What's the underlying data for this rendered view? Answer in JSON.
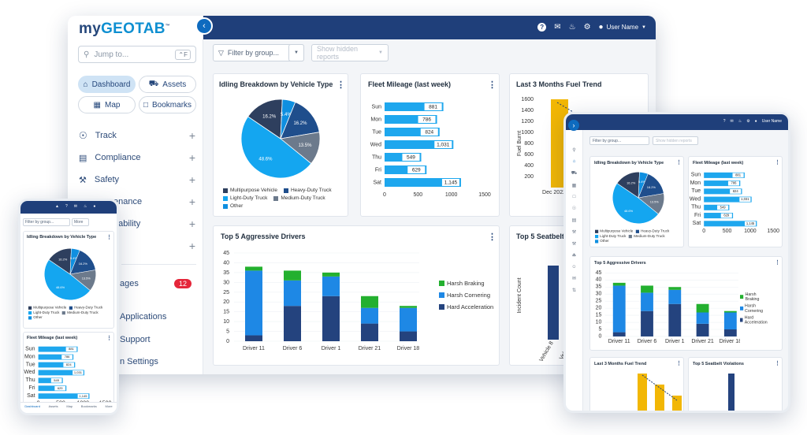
{
  "brand": {
    "prefix": "my",
    "name": "GEOTAB",
    "tm": "™"
  },
  "topbar": {
    "user": "User Name"
  },
  "sidebar": {
    "search_placeholder": "Jump to...",
    "search_shortcut": "⌃F",
    "tiles": [
      {
        "label": "Dashboard"
      },
      {
        "label": "Assets"
      },
      {
        "label": "Map"
      },
      {
        "label": "Bookmarks"
      }
    ],
    "nav": [
      {
        "label": "Track"
      },
      {
        "label": "Compliance"
      },
      {
        "label": "Safety"
      },
      {
        "label": "enance"
      },
      {
        "label": "nability"
      },
      {
        "label": "e"
      }
    ],
    "messages_label": "ages",
    "messages_count": "12",
    "apps_label": "Applications",
    "support_label": "Support",
    "settings_label": "n Settings"
  },
  "filters": {
    "group": "Filter by group...",
    "hidden": "Show hidden reports"
  },
  "idling": {
    "title": "Idling Breakdown by Vehicle Type",
    "slices": [
      {
        "name": "Multipurpose Vehicle",
        "value": 16.2,
        "color": "#2e3f5e"
      },
      {
        "name": "Heavy-Duty Truck",
        "value": 16.2,
        "color": "#1f4e8c"
      },
      {
        "name": "Light-Duty Truck",
        "value": 48.6,
        "color": "#14a6f0"
      },
      {
        "name": "Medium-Duty Truck",
        "value": 13.5,
        "color": "#6c7a8c"
      },
      {
        "name": "Other",
        "value": 5.4,
        "color": "#0f8fe0"
      }
    ]
  },
  "mileage": {
    "title": "Fleet Mileage (last week)",
    "days": [
      "Sun",
      "Mon",
      "Tue",
      "Wed",
      "Thu",
      "Fri",
      "Sat"
    ],
    "values": [
      881,
      786,
      824,
      1031,
      549,
      629,
      1145
    ],
    "labels": [
      "881",
      "786",
      "824",
      "1,031",
      "549",
      "629",
      "1,145"
    ],
    "ticks": [
      "0",
      "500",
      "1000",
      "1500"
    ]
  },
  "fuel": {
    "title": "Last 3 Months Fuel Trend",
    "yticks": [
      "1600",
      "1400",
      "1200",
      "1000",
      "800",
      "600",
      "400",
      "200"
    ],
    "ylabel": "Fuel Burnt",
    "xlabel": "Dec 2022"
  },
  "drivers": {
    "title": "Top 5 Aggressive Drivers",
    "names": [
      "Driver 11",
      "Driver 6",
      "Driver 1",
      "Driver 21",
      "Driver 18"
    ],
    "series": [
      {
        "name": "Harsh Braking",
        "color": "#23b02f",
        "values": [
          2,
          5,
          2,
          6,
          1
        ]
      },
      {
        "name": "Harsh Cornering",
        "color": "#1e88e5",
        "values": [
          33,
          13,
          10,
          8,
          12
        ]
      },
      {
        "name": "Hard Acceleration",
        "color": "#24437e",
        "values": [
          3,
          18,
          23,
          9,
          5
        ]
      }
    ],
    "yticks": [
      "45",
      "40",
      "35",
      "30",
      "25",
      "20",
      "15",
      "10",
      "5",
      "0"
    ]
  },
  "seatbelt": {
    "title": "Top 5 Seatbelt Vio",
    "ylabel": "Incident Count",
    "xlabels": [
      "Vehicle 8",
      "Vehicle"
    ]
  },
  "phone": {
    "nav": [
      "Dashboard",
      "Assets",
      "Map",
      "Bookmarks",
      "More"
    ],
    "filter": "Filter by group...",
    "more": "More"
  },
  "tablet": {
    "seatbelt_title": "Top 5 Seatbelt Violations",
    "fuel_title": "Last 3 Months Fuel Trend"
  }
}
